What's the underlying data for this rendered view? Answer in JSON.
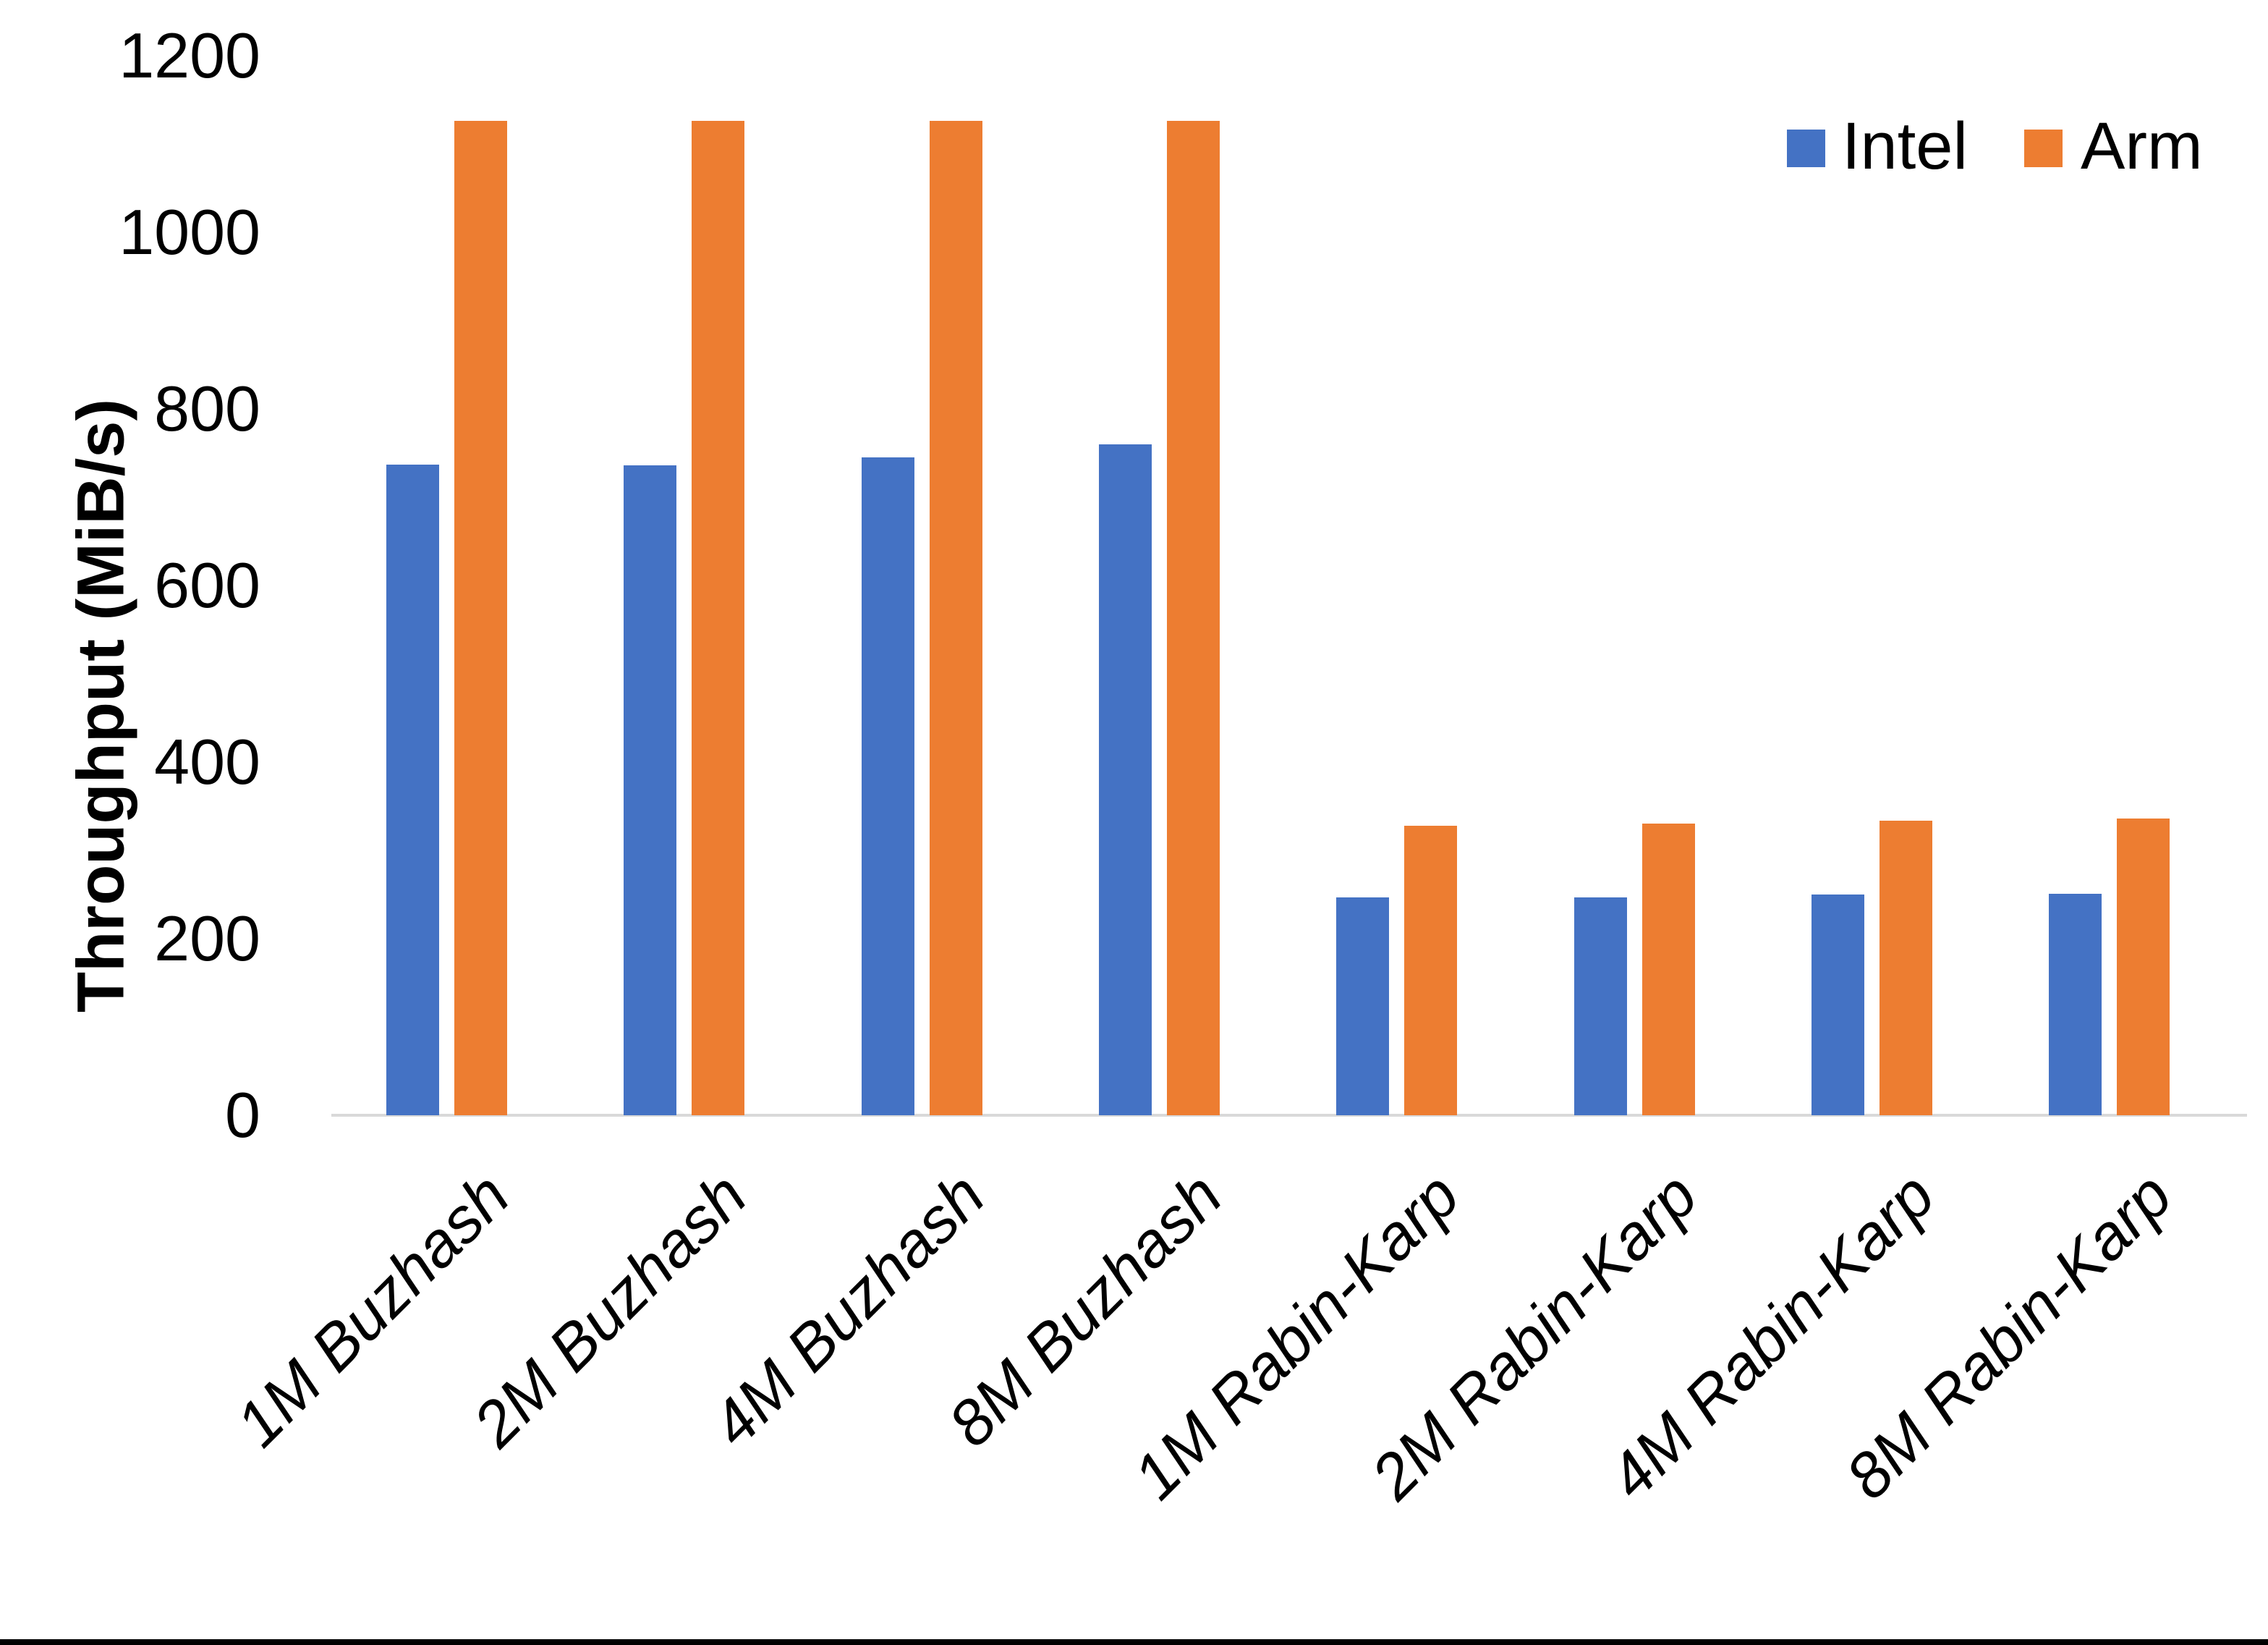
{
  "chart_data": {
    "type": "bar",
    "title": "",
    "xlabel": "",
    "ylabel": "Throughput (MiB/s)",
    "categories": [
      "1M Buzhash",
      "2M Buzhash",
      "4M Buzhash",
      "8M Buzhash",
      "1M Rabin-Karp",
      "2M Rabin-Karp",
      "4M Rabin-Karp",
      "8M Rabin-Karp"
    ],
    "series": [
      {
        "name": "Intel",
        "color": "#4472C4",
        "values": [
          737,
          736,
          745,
          760,
          247,
          247,
          250,
          251
        ]
      },
      {
        "name": "Arm",
        "color": "#ED7D31",
        "values": [
          1126,
          1126,
          1126,
          1126,
          328,
          330,
          334,
          336
        ]
      }
    ],
    "ylim": [
      0,
      1200
    ],
    "yticks": [
      0,
      200,
      400,
      600,
      800,
      1000,
      1200
    ],
    "grid": false,
    "legend_position": "top-right",
    "axis_line_color": "#D9D9D9",
    "text_color": "#000000"
  }
}
